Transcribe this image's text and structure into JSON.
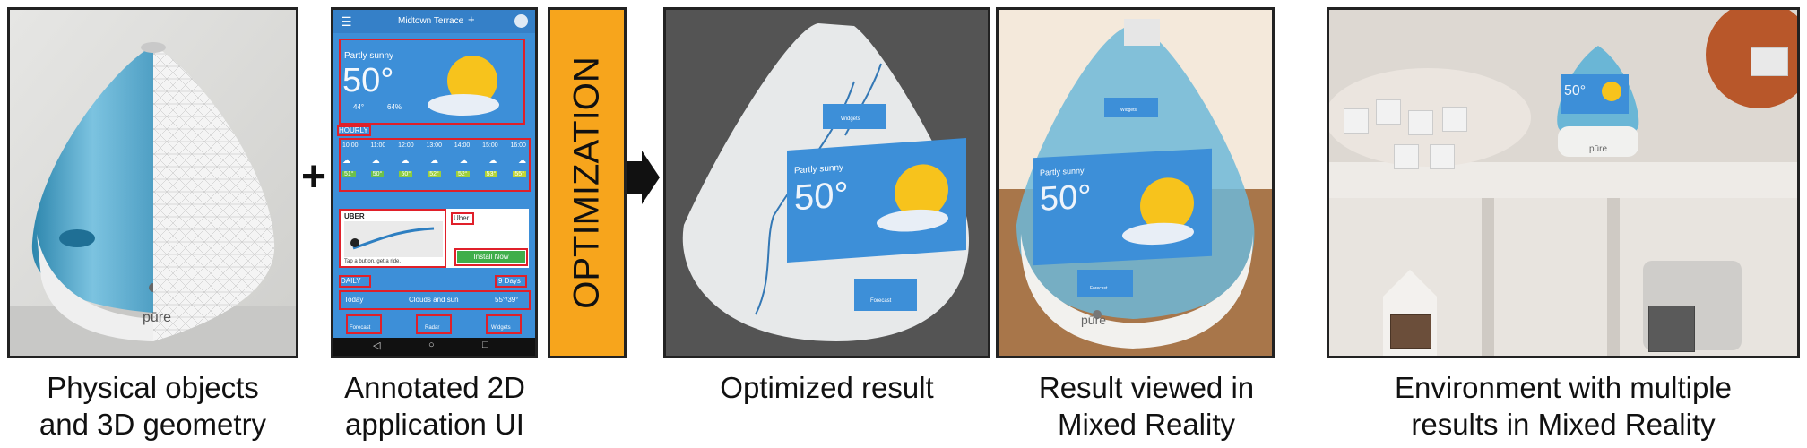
{
  "captions": {
    "physical": [
      "Physical objects",
      "and 3D geometry"
    ],
    "annotated": [
      "Annotated 2D",
      "application UI"
    ],
    "optimized": [
      "Optimized result"
    ],
    "viewed": [
      "Result viewed in",
      "Mixed Reality"
    ],
    "environment": [
      "Environment with multiple",
      "results in Mixed Reality"
    ]
  },
  "plus_symbol": "+",
  "optimization_label": "OPTIMIZATION",
  "brand_logo": "pūre",
  "phone_app": {
    "location": "Midtown Terrace",
    "condition": "Partly sunny",
    "temperature": "50°",
    "hi": "44°",
    "humidity": "64%",
    "hourly_label": "HOURLY",
    "hours": [
      "10:00",
      "11:00",
      "12:00",
      "13:00",
      "14:00",
      "15:00",
      "16:00"
    ],
    "hourly_temps": [
      "51°",
      "50°",
      "50°",
      "52°",
      "52°",
      "53°",
      "55°"
    ],
    "ad_brand": "UBER",
    "ad_name": "Uber",
    "ad_tagline": "Tap a button, get a ride.",
    "install_label": "Install Now",
    "daily_label": "DAILY",
    "daily_range": "9 Days",
    "today_label": "Today",
    "today_desc": "Clouds and sun",
    "today_temps": "55°/39°",
    "nav_tabs": [
      "Forecast",
      "Radar",
      "Widgets"
    ]
  },
  "widget_labels": {
    "top": "Widgets",
    "bottom": "Forecast"
  },
  "colors": {
    "accent_orange": "#f7a51c",
    "phone_blue": "#3d8fd8",
    "annotation_red": "#e0202a",
    "humidifier_blue": "#5aa9cf"
  }
}
